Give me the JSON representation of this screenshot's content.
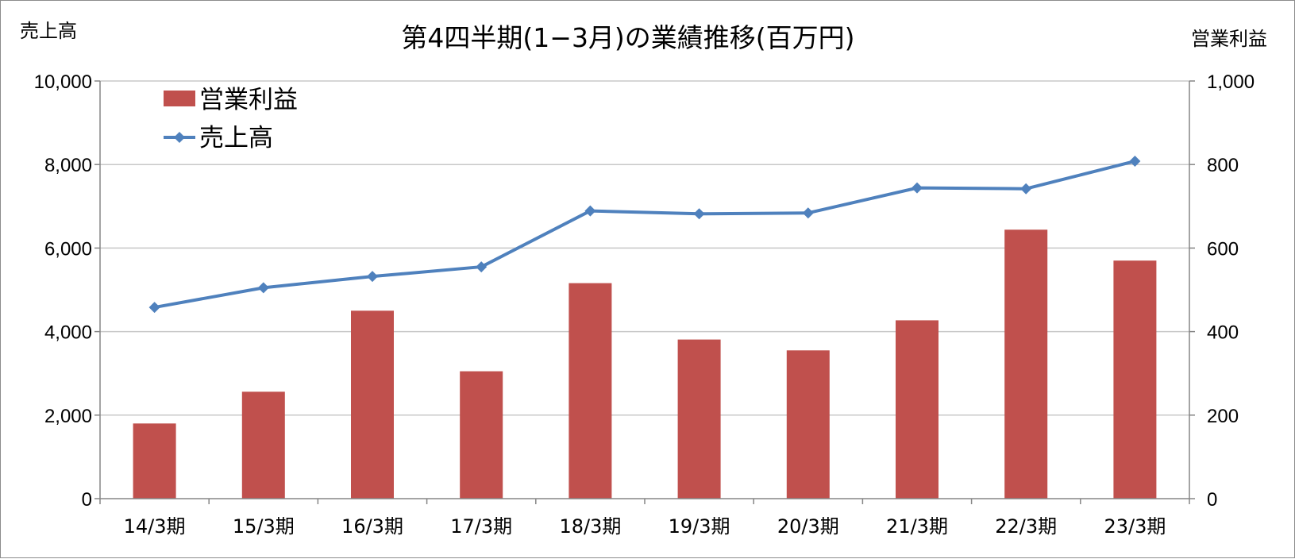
{
  "chart_data": {
    "type": "bar",
    "title": "第4四半期(1−3月)の業績推移(百万円)",
    "left_axis_label": "売上高",
    "right_axis_label": "営業利益",
    "categories": [
      "14/3期",
      "15/3期",
      "16/3期",
      "17/3期",
      "18/3期",
      "19/3期",
      "20/3期",
      "21/3期",
      "22/3期",
      "23/3期"
    ],
    "left_ylim": [
      0,
      10000
    ],
    "right_ylim": [
      0,
      1000
    ],
    "left_ticks": [
      "0",
      "2,000",
      "4,000",
      "6,000",
      "8,000",
      "10,000"
    ],
    "right_ticks": [
      "0",
      "200",
      "400",
      "600",
      "800",
      "1,000"
    ],
    "grid": true,
    "legend_position": "top-left",
    "series": [
      {
        "name": "営業利益",
        "type": "bar",
        "axis": "right",
        "color": "#C0504D",
        "values": [
          180,
          256,
          450,
          305,
          516,
          381,
          355,
          427,
          644,
          570
        ]
      },
      {
        "name": "売上高",
        "type": "line",
        "axis": "left",
        "marker": "diamond",
        "color": "#4F81BD",
        "values": [
          4580,
          5050,
          5320,
          5550,
          6890,
          6820,
          6840,
          7440,
          7420,
          8080
        ]
      }
    ]
  }
}
